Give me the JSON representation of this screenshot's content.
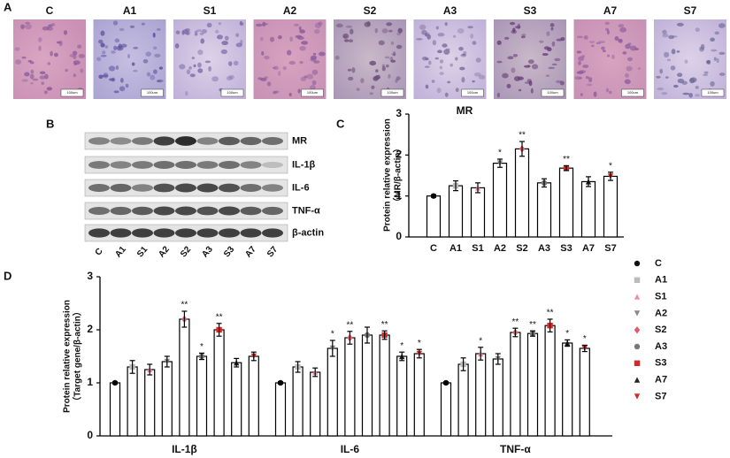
{
  "panel_a": {
    "label": "A",
    "groups": [
      "C",
      "A1",
      "S1",
      "A2",
      "S2",
      "A3",
      "S3",
      "A7",
      "S7"
    ],
    "scale_label": "100um"
  },
  "panel_b": {
    "label": "B",
    "proteins": [
      "MR",
      "IL-1β",
      "IL-6",
      "TNF-α",
      "β-actin"
    ],
    "lanes": [
      "C",
      "A1",
      "S1",
      "A2",
      "S2",
      "A3",
      "S3",
      "A7",
      "S7"
    ]
  },
  "chart_data": [
    {
      "type": "bar",
      "panel_label": "C",
      "title": "MR",
      "ylabel": [
        "Protein relative expression",
        "（MR/β-actin）"
      ],
      "categories": [
        "C",
        "A1",
        "S1",
        "A2",
        "S2",
        "A3",
        "S3",
        "A7",
        "S7"
      ],
      "values": [
        1.0,
        1.25,
        1.2,
        1.8,
        2.15,
        1.32,
        1.68,
        1.35,
        1.48
      ],
      "errors": [
        0.03,
        0.12,
        0.12,
        0.1,
        0.18,
        0.1,
        0.06,
        0.12,
        0.1
      ],
      "significance": [
        null,
        null,
        null,
        "*",
        "**",
        null,
        "**",
        null,
        "*"
      ],
      "color": "#ffffff",
      "marker_colors": [
        "#111111",
        "#bbbbbb",
        "#f08fa0",
        "#888888",
        "#e05a6a",
        "#777777",
        "#d62828",
        "#222222",
        "#d62828"
      ],
      "ylim": [
        0,
        3
      ],
      "yticks": [
        0,
        1,
        2,
        3
      ]
    },
    {
      "type": "grouped_bar",
      "panel_label": "D",
      "ylabel": [
        "Protein relative expression",
        "（Target gene/β-actin）"
      ],
      "categories": [
        "IL-1β",
        "IL-6",
        "TNF-α"
      ],
      "legend": "right",
      "ylim": [
        0,
        3
      ],
      "yticks": [
        0,
        1,
        2,
        3
      ],
      "series": [
        {
          "name": "C",
          "color": "#111111",
          "values": [
            1.0,
            1.0,
            1.0
          ],
          "errors": [
            0.02,
            0.02,
            0.02
          ],
          "significance": [
            null,
            null,
            null
          ]
        },
        {
          "name": "A1",
          "color": "#bbbbbb",
          "values": [
            1.3,
            1.3,
            1.35
          ],
          "errors": [
            0.12,
            0.1,
            0.12
          ],
          "significance": [
            null,
            null,
            null
          ]
        },
        {
          "name": "S1",
          "color": "#f08fa0",
          "values": [
            1.25,
            1.2,
            1.55
          ],
          "errors": [
            0.1,
            0.08,
            0.12
          ],
          "significance": [
            null,
            null,
            "*"
          ]
        },
        {
          "name": "A2",
          "color": "#888888",
          "values": [
            1.4,
            1.65,
            1.45
          ],
          "errors": [
            0.1,
            0.15,
            0.1
          ],
          "significance": [
            null,
            "*",
            null
          ]
        },
        {
          "name": "S2",
          "color": "#e05a6a",
          "values": [
            2.2,
            1.85,
            1.95
          ],
          "errors": [
            0.15,
            0.12,
            0.08
          ],
          "significance": [
            "**",
            "**",
            "**"
          ]
        },
        {
          "name": "A3",
          "color": "#777777",
          "values": [
            1.5,
            1.9,
            1.93
          ],
          "errors": [
            0.06,
            0.15,
            0.05
          ],
          "significance": [
            "*",
            null,
            "**"
          ]
        },
        {
          "name": "S3",
          "color": "#d62828",
          "values": [
            2.0,
            1.9,
            2.08
          ],
          "errors": [
            0.12,
            0.08,
            0.12
          ],
          "significance": [
            "**",
            "**",
            "**"
          ]
        },
        {
          "name": "A7",
          "color": "#222222",
          "values": [
            1.38,
            1.5,
            1.75
          ],
          "errors": [
            0.08,
            0.08,
            0.06
          ],
          "significance": [
            null,
            "*",
            "*"
          ]
        },
        {
          "name": "S7",
          "color": "#d62828",
          "values": [
            1.5,
            1.55,
            1.65
          ],
          "errors": [
            0.08,
            0.08,
            0.06
          ],
          "significance": [
            null,
            "*",
            "*"
          ]
        }
      ]
    }
  ]
}
